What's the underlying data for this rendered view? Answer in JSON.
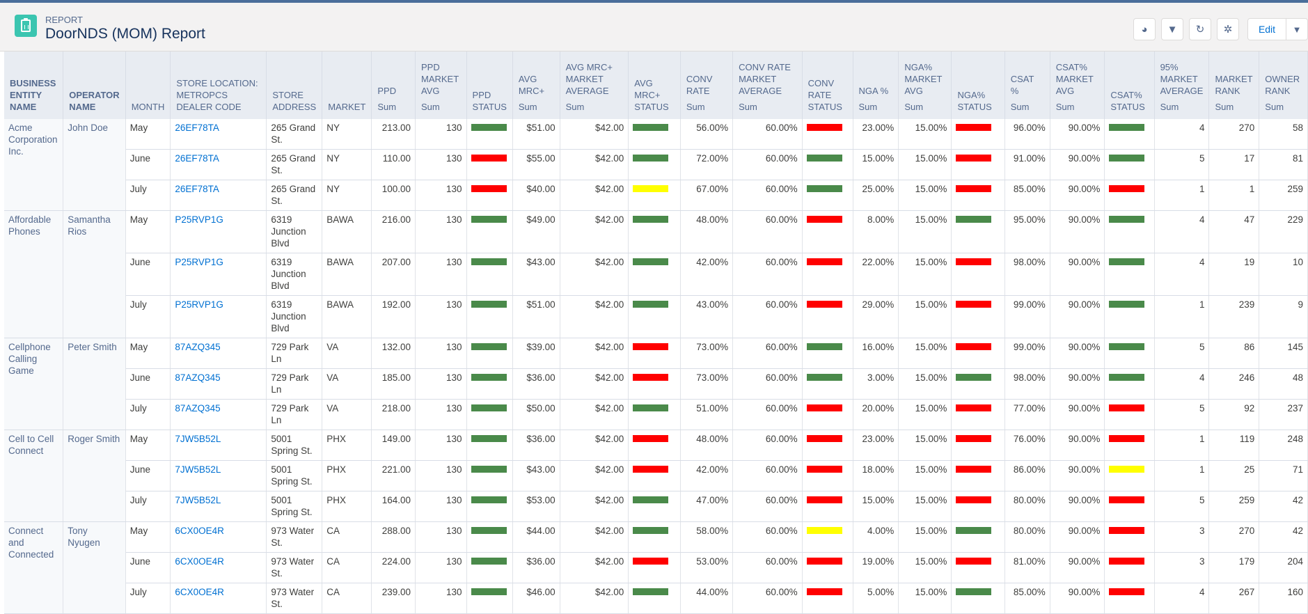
{
  "header": {
    "eyebrow": "REPORT",
    "title": "DoorNDS (MOM) Report",
    "edit_label": "Edit"
  },
  "toolbar_icons": [
    "chart-icon",
    "filter-icon",
    "refresh-icon",
    "settings-icon"
  ],
  "status_colors": {
    "green": "#4a8a4a",
    "red": "#ff0000",
    "yellow": "#ffff00"
  },
  "columns": [
    [
      "BUSINESS ENTITY NAME"
    ],
    [
      "OPERATOR NAME"
    ],
    [
      "MONTH"
    ],
    [
      "STORE LOCATION: METROPCS DEALER CODE"
    ],
    [
      "STORE ADDRESS"
    ],
    [
      "MARKET"
    ],
    [
      "PPD",
      "Sum"
    ],
    [
      "PPD MARKET AVG",
      "Sum"
    ],
    [
      "PPD STATUS"
    ],
    [
      "AVG MRC+",
      "Sum"
    ],
    [
      "AVG MRC+ MARKET AVERAGE",
      "Sum"
    ],
    [
      "AVG MRC+ STATUS"
    ],
    [
      "CONV RATE",
      "Sum"
    ],
    [
      "CONV RATE MARKET AVERAGE",
      "Sum"
    ],
    [
      "CONV RATE STATUS"
    ],
    [
      "NGA %",
      "Sum"
    ],
    [
      "NGA% MARKET AVG",
      "Sum"
    ],
    [
      "NGA% STATUS"
    ],
    [
      "CSAT %",
      "Sum"
    ],
    [
      "CSAT% MARKET AVG",
      "Sum"
    ],
    [
      "CSAT% STATUS"
    ],
    [
      "95% MARKET AVERAGE",
      "Sum"
    ],
    [
      "MARKET RANK",
      "Sum"
    ],
    [
      "OWNER RANK",
      "Sum"
    ]
  ],
  "groups": [
    {
      "entity": "Acme Corporation Inc.",
      "operator": "John Doe",
      "rows": [
        [
          "May",
          "26EF78TA",
          "265 Grand St.",
          "NY",
          "213.00",
          "130",
          "green",
          "$51.00",
          "$42.00",
          "green",
          "56.00%",
          "60.00%",
          "red",
          "23.00%",
          "15.00%",
          "red",
          "96.00%",
          "90.00%",
          "green",
          "4",
          "270",
          "58"
        ],
        [
          "June",
          "26EF78TA",
          "265 Grand St.",
          "NY",
          "110.00",
          "130",
          "red",
          "$55.00",
          "$42.00",
          "green",
          "72.00%",
          "60.00%",
          "green",
          "15.00%",
          "15.00%",
          "red",
          "91.00%",
          "90.00%",
          "green",
          "5",
          "17",
          "81"
        ],
        [
          "July",
          "26EF78TA",
          "265 Grand St.",
          "NY",
          "100.00",
          "130",
          "red",
          "$40.00",
          "$42.00",
          "yellow",
          "67.00%",
          "60.00%",
          "green",
          "25.00%",
          "15.00%",
          "red",
          "85.00%",
          "90.00%",
          "red",
          "1",
          "1",
          "259"
        ]
      ]
    },
    {
      "entity": "Affordable Phones",
      "operator": "Samantha Rios",
      "rows": [
        [
          "May",
          "P25RVP1G",
          "6319 Junction Blvd",
          "BAWA",
          "216.00",
          "130",
          "green",
          "$49.00",
          "$42.00",
          "green",
          "48.00%",
          "60.00%",
          "red",
          "8.00%",
          "15.00%",
          "green",
          "95.00%",
          "90.00%",
          "green",
          "4",
          "47",
          "229"
        ],
        [
          "June",
          "P25RVP1G",
          "6319 Junction Blvd",
          "BAWA",
          "207.00",
          "130",
          "green",
          "$43.00",
          "$42.00",
          "green",
          "42.00%",
          "60.00%",
          "red",
          "22.00%",
          "15.00%",
          "red",
          "98.00%",
          "90.00%",
          "green",
          "4",
          "19",
          "10"
        ],
        [
          "July",
          "P25RVP1G",
          "6319 Junction Blvd",
          "BAWA",
          "192.00",
          "130",
          "green",
          "$51.00",
          "$42.00",
          "green",
          "43.00%",
          "60.00%",
          "red",
          "29.00%",
          "15.00%",
          "red",
          "99.00%",
          "90.00%",
          "green",
          "1",
          "239",
          "9"
        ]
      ]
    },
    {
      "entity": "Cellphone Calling Game",
      "operator": "Peter Smith",
      "rows": [
        [
          "May",
          "87AZQ345",
          "729 Park Ln",
          "VA",
          "132.00",
          "130",
          "green",
          "$39.00",
          "$42.00",
          "red",
          "73.00%",
          "60.00%",
          "green",
          "16.00%",
          "15.00%",
          "red",
          "99.00%",
          "90.00%",
          "green",
          "5",
          "86",
          "145"
        ],
        [
          "June",
          "87AZQ345",
          "729 Park Ln",
          "VA",
          "185.00",
          "130",
          "green",
          "$36.00",
          "$42.00",
          "red",
          "73.00%",
          "60.00%",
          "green",
          "3.00%",
          "15.00%",
          "green",
          "98.00%",
          "90.00%",
          "green",
          "4",
          "246",
          "48"
        ],
        [
          "July",
          "87AZQ345",
          "729 Park Ln",
          "VA",
          "218.00",
          "130",
          "green",
          "$50.00",
          "$42.00",
          "green",
          "51.00%",
          "60.00%",
          "red",
          "20.00%",
          "15.00%",
          "red",
          "77.00%",
          "90.00%",
          "red",
          "5",
          "92",
          "237"
        ]
      ]
    },
    {
      "entity": "Cell to Cell Connect",
      "operator": "Roger Smith",
      "rows": [
        [
          "May",
          "7JW5B52L",
          "5001 Spring St.",
          "PHX",
          "149.00",
          "130",
          "green",
          "$36.00",
          "$42.00",
          "red",
          "48.00%",
          "60.00%",
          "red",
          "23.00%",
          "15.00%",
          "red",
          "76.00%",
          "90.00%",
          "red",
          "1",
          "119",
          "248"
        ],
        [
          "June",
          "7JW5B52L",
          "5001 Spring St.",
          "PHX",
          "221.00",
          "130",
          "green",
          "$43.00",
          "$42.00",
          "red",
          "42.00%",
          "60.00%",
          "red",
          "18.00%",
          "15.00%",
          "red",
          "86.00%",
          "90.00%",
          "yellow",
          "1",
          "25",
          "71"
        ],
        [
          "July",
          "7JW5B52L",
          "5001 Spring St.",
          "PHX",
          "164.00",
          "130",
          "green",
          "$53.00",
          "$42.00",
          "green",
          "47.00%",
          "60.00%",
          "red",
          "15.00%",
          "15.00%",
          "red",
          "80.00%",
          "90.00%",
          "red",
          "5",
          "259",
          "42"
        ]
      ]
    },
    {
      "entity": "Connect and Connected",
      "operator": "Tony Nyugen",
      "rows": [
        [
          "May",
          "6CX0OE4R",
          "973 Water St.",
          "CA",
          "288.00",
          "130",
          "green",
          "$44.00",
          "$42.00",
          "green",
          "58.00%",
          "60.00%",
          "yellow",
          "4.00%",
          "15.00%",
          "green",
          "80.00%",
          "90.00%",
          "red",
          "3",
          "270",
          "42"
        ],
        [
          "June",
          "6CX0OE4R",
          "973 Water St.",
          "CA",
          "224.00",
          "130",
          "green",
          "$36.00",
          "$42.00",
          "red",
          "53.00%",
          "60.00%",
          "red",
          "19.00%",
          "15.00%",
          "red",
          "81.00%",
          "90.00%",
          "red",
          "3",
          "179",
          "204"
        ],
        [
          "July",
          "6CX0OE4R",
          "973 Water St.",
          "CA",
          "239.00",
          "130",
          "green",
          "$46.00",
          "$42.00",
          "green",
          "44.00%",
          "60.00%",
          "red",
          "5.00%",
          "15.00%",
          "green",
          "85.00%",
          "90.00%",
          "red",
          "4",
          "267",
          "160"
        ]
      ]
    }
  ]
}
